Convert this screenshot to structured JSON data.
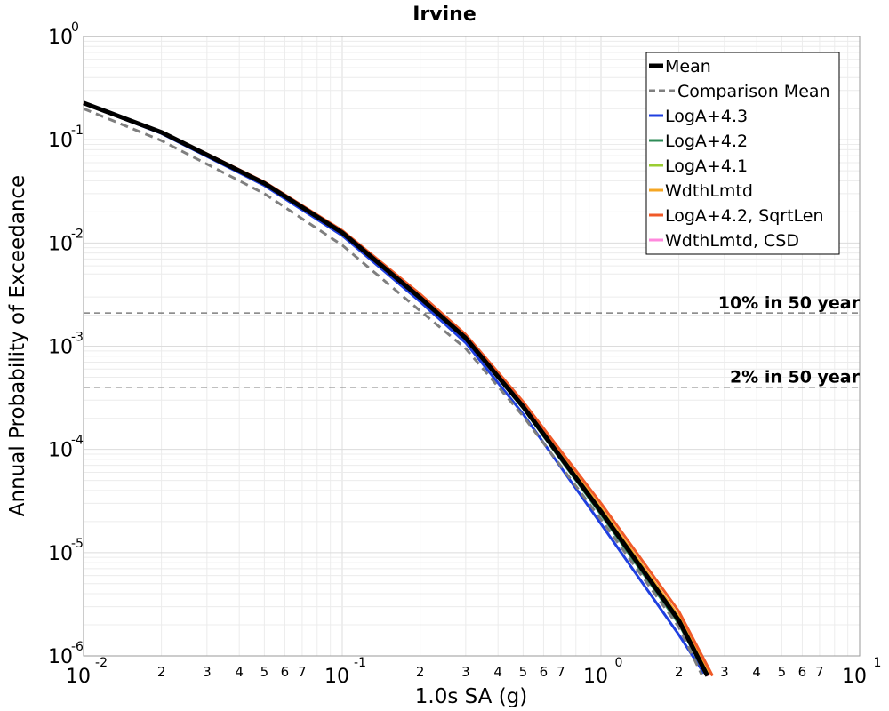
{
  "chart_data": {
    "type": "line",
    "title": "Irvine",
    "xlabel": "1.0s SA (g)",
    "ylabel": "Annual Probability of Exceedance",
    "x_scale": "log",
    "y_scale": "log",
    "xlim": [
      0.01,
      10
    ],
    "ylim": [
      1e-06,
      1
    ],
    "grid": true,
    "legend_position": "top-right",
    "x_major_ticks": [
      {
        "base": "10",
        "exp": "-2",
        "value": 0.01
      },
      {
        "base": "10",
        "exp": "-1",
        "value": 0.1
      },
      {
        "base": "10",
        "exp": "0",
        "value": 1
      },
      {
        "base": "10",
        "exp": "1",
        "value": 10
      }
    ],
    "x_minor_tick_labels": [
      "2",
      "3",
      "4",
      "5",
      "6",
      "7"
    ],
    "y_major_ticks": [
      {
        "base": "10",
        "exp": "0",
        "value": 1
      },
      {
        "base": "10",
        "exp": "-1",
        "value": 0.1
      },
      {
        "base": "10",
        "exp": "-2",
        "value": 0.01
      },
      {
        "base": "10",
        "exp": "-3",
        "value": 0.001
      },
      {
        "base": "10",
        "exp": "-4",
        "value": 0.0001
      },
      {
        "base": "10",
        "exp": "-5",
        "value": 1e-05
      },
      {
        "base": "10",
        "exp": "-6",
        "value": 1e-06
      }
    ],
    "reference_lines": [
      {
        "label": "10% in 50 year",
        "y": 0.0021
      },
      {
        "label": "2% in 50 year",
        "y": 0.0004
      }
    ],
    "series": [
      {
        "name": "LogA+4.3",
        "color": "#1f3fe0",
        "width": 3,
        "dash": "",
        "x": [
          0.01,
          0.02,
          0.05,
          0.1,
          0.2,
          0.3,
          0.5,
          1.0,
          2.0,
          2.5
        ],
        "y": [
          0.225,
          0.115,
          0.036,
          0.0118,
          0.0027,
          0.00108,
          0.00022,
          1.9e-05,
          1.6e-06,
          6.8e-07
        ]
      },
      {
        "name": "LogA+4.2",
        "color": "#2e8b57",
        "width": 3,
        "dash": "",
        "x": [
          0.01,
          0.02,
          0.05,
          0.1,
          0.2,
          0.3,
          0.5,
          1.0,
          2.0,
          2.55
        ],
        "y": [
          0.226,
          0.117,
          0.0375,
          0.0125,
          0.0029,
          0.00117,
          0.00025,
          2.35e-05,
          2.05e-06,
          6.5e-07
        ]
      },
      {
        "name": "LogA+4.1",
        "color": "#9acd32",
        "width": 3,
        "dash": "",
        "x": [
          0.01,
          0.02,
          0.05,
          0.1,
          0.2,
          0.3,
          0.5,
          1.0,
          2.0,
          2.6
        ],
        "y": [
          0.227,
          0.118,
          0.038,
          0.0127,
          0.003,
          0.0012,
          0.00026,
          2.5e-05,
          2.2e-06,
          6.4e-07
        ]
      },
      {
        "name": "WdthLmtd",
        "color": "#f5a623",
        "width": 3,
        "dash": "",
        "x": [
          0.01,
          0.02,
          0.05,
          0.1,
          0.2,
          0.3,
          0.5,
          1.0,
          2.0,
          2.62
        ],
        "y": [
          0.228,
          0.119,
          0.0385,
          0.0129,
          0.0031,
          0.00125,
          0.00027,
          2.7e-05,
          2.4e-06,
          6.6e-07
        ]
      },
      {
        "name": "LogA+4.2, SqrtLen",
        "color": "#f05a28",
        "width": 3,
        "dash": "",
        "x": [
          0.01,
          0.02,
          0.05,
          0.1,
          0.2,
          0.3,
          0.5,
          1.0,
          2.0,
          2.7
        ],
        "y": [
          0.229,
          0.12,
          0.039,
          0.0132,
          0.0032,
          0.0013,
          0.00029,
          3e-05,
          2.7e-06,
          6.4e-07
        ]
      },
      {
        "name": "WdthLmtd, CSD",
        "color": "#ff88dd",
        "width": 3,
        "dash": "",
        "x": [
          0.01,
          0.02,
          0.05,
          0.1,
          0.2,
          0.3,
          0.5,
          1.0,
          2.0,
          2.6
        ],
        "y": [
          0.227,
          0.118,
          0.038,
          0.0127,
          0.003,
          0.0012,
          0.00026,
          2.5e-05,
          2.2e-06,
          6.4e-07
        ]
      },
      {
        "name": "Comparison Mean",
        "color": "#7f7f7f",
        "width": 3,
        "dash": "9,6",
        "x": [
          0.01,
          0.02,
          0.05,
          0.1,
          0.2,
          0.3,
          0.5,
          1.0,
          2.0,
          2.45
        ],
        "y": [
          0.2,
          0.098,
          0.03,
          0.0095,
          0.0022,
          0.00095,
          0.00021,
          2.1e-05,
          1.9e-06,
          6.6e-07
        ]
      },
      {
        "name": "Mean",
        "color": "#000000",
        "width": 5,
        "dash": "",
        "x": [
          0.01,
          0.02,
          0.05,
          0.1,
          0.2,
          0.3,
          0.5,
          1.0,
          2.0,
          2.58
        ],
        "y": [
          0.227,
          0.118,
          0.0378,
          0.0126,
          0.00295,
          0.0012,
          0.00026,
          2.5e-05,
          2.2e-06,
          6.4e-07
        ]
      }
    ],
    "legend": [
      {
        "name": "Mean",
        "color": "#000000",
        "width": 5,
        "dash": ""
      },
      {
        "name": "Comparison Mean",
        "color": "#7f7f7f",
        "width": 3,
        "dash": "9,6"
      },
      {
        "name": "LogA+4.3",
        "color": "#1f3fe0",
        "width": 3,
        "dash": ""
      },
      {
        "name": "LogA+4.2",
        "color": "#2e8b57",
        "width": 3,
        "dash": ""
      },
      {
        "name": "LogA+4.1",
        "color": "#9acd32",
        "width": 3,
        "dash": ""
      },
      {
        "name": "WdthLmtd",
        "color": "#f5a623",
        "width": 3,
        "dash": ""
      },
      {
        "name": "LogA+4.2, SqrtLen",
        "color": "#f05a28",
        "width": 3,
        "dash": ""
      },
      {
        "name": "WdthLmtd, CSD",
        "color": "#ff88dd",
        "width": 3,
        "dash": ""
      }
    ]
  }
}
